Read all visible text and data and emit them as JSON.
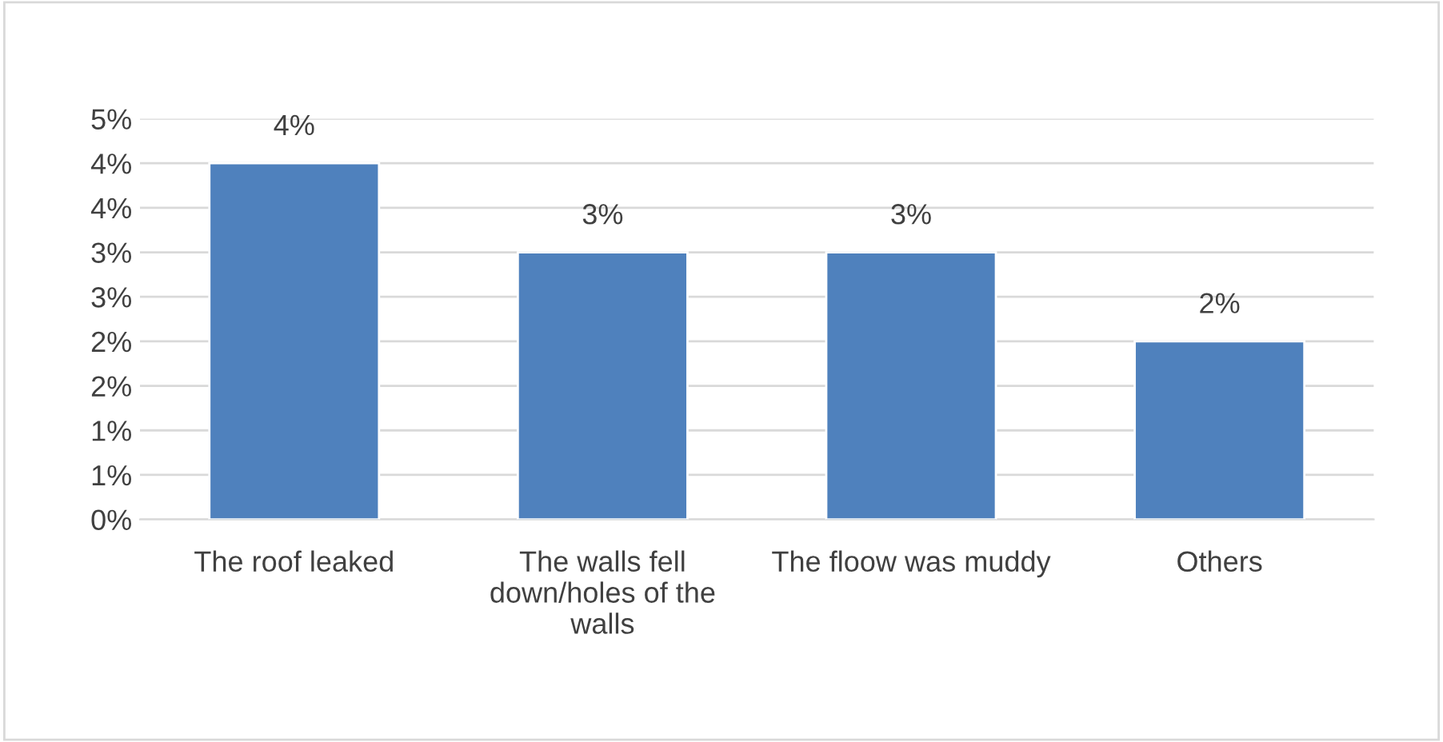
{
  "chart_data": {
    "type": "bar",
    "categories": [
      "The roof leaked",
      "The walls fell down/holes of the walls",
      "The floow was muddy",
      "Others"
    ],
    "values": [
      4,
      3,
      3,
      2
    ],
    "color": "#4f81bd",
    "value_labels": [
      "4%",
      "3%",
      "3%",
      "2%"
    ],
    "ylim": [
      0,
      4.5
    ],
    "yticks": [
      {
        "value": 0,
        "label": "0%"
      },
      {
        "value": 0.5,
        "label": "1%"
      },
      {
        "value": 1,
        "label": "1%"
      },
      {
        "value": 1.5,
        "label": "2%"
      },
      {
        "value": 2,
        "label": "2%"
      },
      {
        "value": 2.5,
        "label": "3%"
      },
      {
        "value": 3,
        "label": "3%"
      },
      {
        "value": 3.5,
        "label": "4%"
      },
      {
        "value": 4,
        "label": "4%"
      },
      {
        "value": 4.5,
        "label": "5%"
      }
    ],
    "grid": "y",
    "legend": false
  }
}
